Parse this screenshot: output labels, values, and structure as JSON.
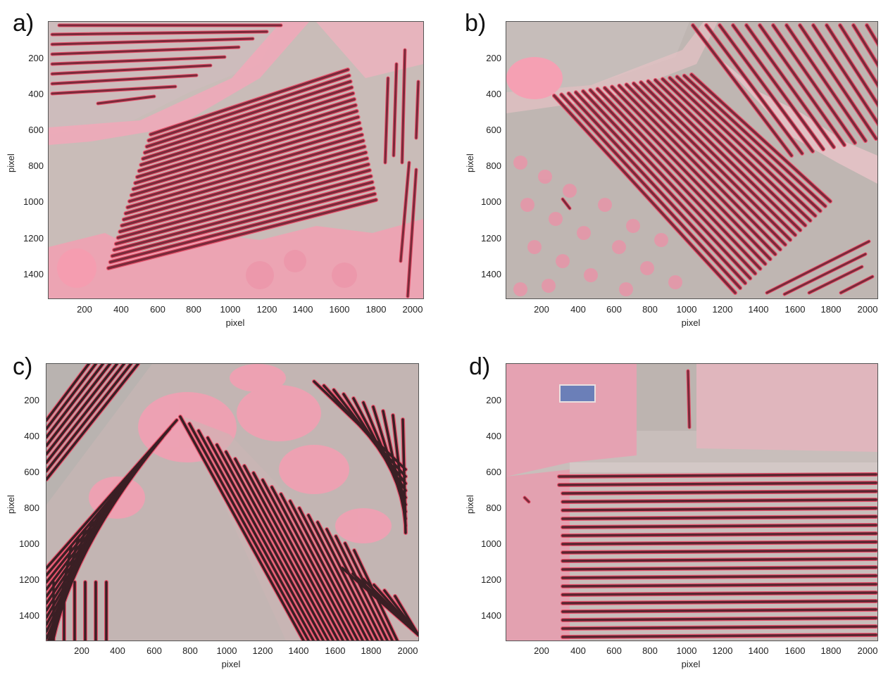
{
  "panels": [
    {
      "id": "a",
      "label": "a)",
      "xlabel": "pixel",
      "ylabel": "pixel"
    },
    {
      "id": "b",
      "label": "b)",
      "xlabel": "pixel",
      "ylabel": "pixel"
    },
    {
      "id": "c",
      "label": "c)",
      "xlabel": "pixel",
      "ylabel": "pixel"
    },
    {
      "id": "d",
      "label": "d)",
      "xlabel": "pixel",
      "ylabel": "pixel"
    }
  ],
  "x_ticks": [
    "200",
    "400",
    "600",
    "800",
    "1000",
    "1200",
    "1400",
    "1600",
    "1800",
    "2000"
  ],
  "y_ticks": [
    "200",
    "400",
    "600",
    "800",
    "1000",
    "1200",
    "1400"
  ],
  "colors": {
    "row_fill": "#7a2a3a",
    "row_outline": "#e8536d",
    "pink": "#f5a3b4",
    "soil": "#c9bcb8",
    "grey": "#b8b0ae"
  }
}
